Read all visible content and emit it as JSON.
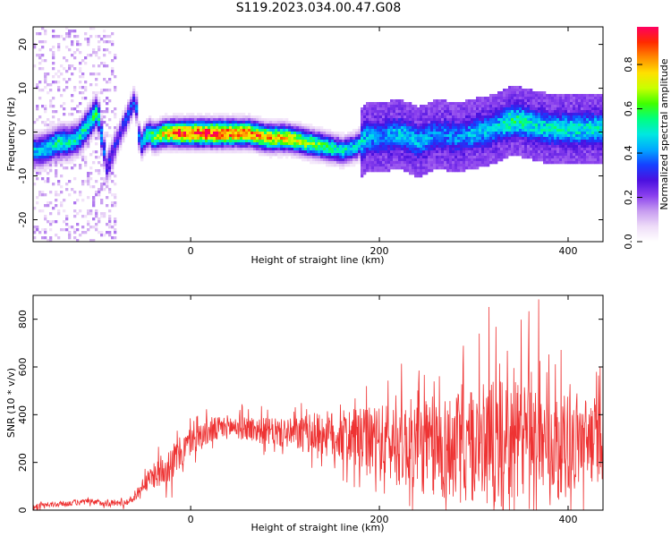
{
  "title": "S119.2023.034.00.47.G08",
  "colors": {
    "snr_line": "#ee3333",
    "colormap": [
      "#ffffff",
      "#eedcf8",
      "#c79cf0",
      "#8a40ee",
      "#4b10e0",
      "#1540ff",
      "#00a8ff",
      "#00e8e0",
      "#00ff80",
      "#40ff00",
      "#c8ff00",
      "#ffe000",
      "#ff8a00",
      "#ff2a00",
      "#ff0060"
    ]
  },
  "chart_data": [
    {
      "type": "heatmap",
      "name": "spectrogram",
      "xlabel": "Height of straight line (km)",
      "ylabel": "Frequency (Hz)",
      "xlim": [
        -167,
        437
      ],
      "ylim": [
        -25,
        24
      ],
      "xticks": [
        0,
        200,
        400
      ],
      "yticks": [
        -20,
        -10,
        0,
        10,
        20
      ],
      "colorbar": {
        "label": "Normalized spectral amplitude",
        "range": [
          0.0,
          0.97
        ],
        "ticks": [
          0.0,
          0.2,
          0.4,
          0.6,
          0.8
        ]
      },
      "ridge": {
        "x": [
          -160,
          -150,
          -140,
          -130,
          -120,
          -110,
          -100,
          -90,
          -80,
          -70,
          -60,
          -55,
          -50,
          -45,
          -40,
          -30,
          -20,
          -10,
          0,
          20,
          40,
          60,
          80,
          100,
          120,
          140,
          160,
          175,
          185,
          200,
          220,
          240,
          260,
          280,
          300,
          320,
          340,
          360,
          380,
          400,
          420,
          437
        ],
        "freq": [
          -4,
          -3,
          -2,
          -2,
          -1,
          2,
          5,
          -8,
          -2,
          3,
          8,
          -3,
          -1,
          0,
          -1,
          0,
          0,
          0,
          0,
          0,
          0,
          0,
          -1,
          -1,
          -2,
          -3,
          -4,
          -3,
          -1,
          -1,
          0,
          -2,
          0,
          -1,
          0,
          1,
          3,
          2,
          1,
          1,
          1,
          1
        ],
        "amplitude": [
          0.45,
          0.5,
          0.55,
          0.5,
          0.5,
          0.55,
          0.55,
          0.3,
          0.3,
          0.35,
          0.35,
          0.4,
          0.5,
          0.6,
          0.65,
          0.75,
          0.85,
          0.9,
          0.92,
          0.95,
          0.9,
          0.85,
          0.8,
          0.75,
          0.7,
          0.6,
          0.5,
          0.5,
          0.45,
          0.4,
          0.45,
          0.45,
          0.4,
          0.4,
          0.45,
          0.45,
          0.55,
          0.5,
          0.5,
          0.5,
          0.5,
          0.5
        ]
      }
    },
    {
      "type": "line",
      "name": "snr",
      "xlabel": "Height of straight line (km)",
      "ylabel": "SNR (10 * v/v)",
      "xlim": [
        -167,
        437
      ],
      "ylim": [
        0,
        900
      ],
      "xticks": [
        0,
        200,
        400
      ],
      "yticks": [
        0,
        200,
        400,
        600,
        800
      ],
      "trend": {
        "x": [
          -167,
          -140,
          -110,
          -90,
          -70,
          -60,
          -50,
          -40,
          -30,
          -20,
          -10,
          0,
          20,
          40,
          60,
          80,
          100,
          120,
          140,
          160,
          180,
          200,
          220,
          240,
          260,
          280,
          300,
          320,
          340,
          360,
          380,
          400,
          420,
          437
        ],
        "y": [
          15,
          25,
          35,
          30,
          30,
          50,
          110,
          140,
          170,
          200,
          240,
          290,
          330,
          350,
          345,
          330,
          320,
          320,
          320,
          310,
          290,
          280,
          280,
          270,
          260,
          260,
          270,
          280,
          290,
          290,
          280,
          280,
          290,
          300
        ]
      },
      "spread": {
        "x": [
          -167,
          -60,
          -40,
          -20,
          0,
          40,
          100,
          160,
          200,
          260,
          320,
          360,
          400,
          437
        ],
        "y": [
          10,
          15,
          50,
          80,
          60,
          50,
          60,
          110,
          160,
          220,
          260,
          240,
          200,
          180
        ]
      },
      "peak_y": 890
    }
  ]
}
